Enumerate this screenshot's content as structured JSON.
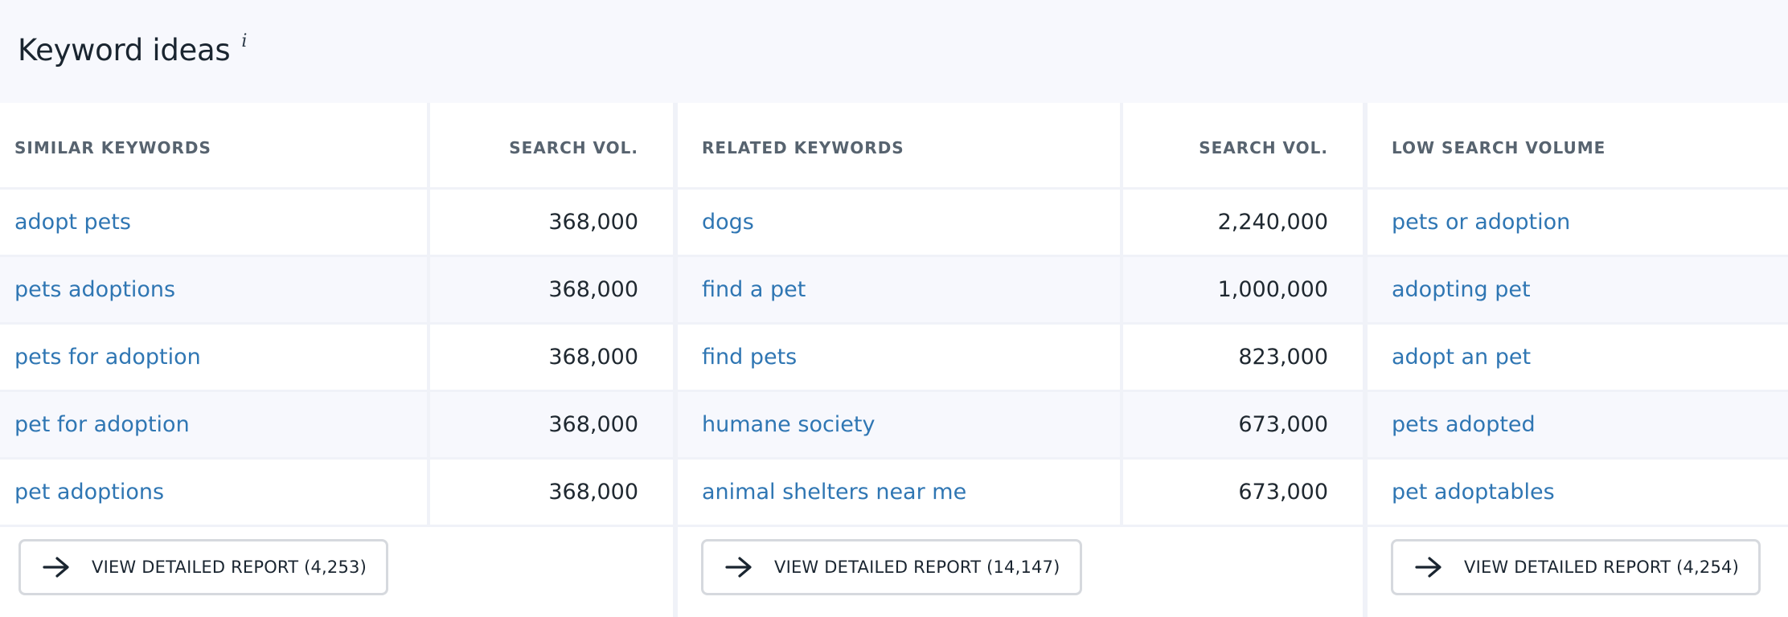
{
  "header": {
    "title": "Keyword ideas",
    "info": "i"
  },
  "sections": {
    "similar": {
      "keyword_header": "SIMILAR KEYWORDS",
      "volume_header": "SEARCH VOL.",
      "rows": [
        {
          "keyword": "adopt pets",
          "volume": "368,000"
        },
        {
          "keyword": "pets adoptions",
          "volume": "368,000"
        },
        {
          "keyword": "pets for adoption",
          "volume": "368,000"
        },
        {
          "keyword": "pet for adoption",
          "volume": "368,000"
        },
        {
          "keyword": "pet adoptions",
          "volume": "368,000"
        }
      ],
      "button_label": "VIEW DETAILED REPORT (4,253)"
    },
    "related": {
      "keyword_header": "RELATED KEYWORDS",
      "volume_header": "SEARCH VOL.",
      "rows": [
        {
          "keyword": "dogs",
          "volume": "2,240,000"
        },
        {
          "keyword": "find a pet",
          "volume": "1,000,000"
        },
        {
          "keyword": "find pets",
          "volume": "823,000"
        },
        {
          "keyword": "humane society",
          "volume": "673,000"
        },
        {
          "keyword": "animal shelters near me",
          "volume": "673,000"
        }
      ],
      "button_label": "VIEW DETAILED REPORT (14,147)"
    },
    "low": {
      "keyword_header": "LOW SEARCH VOLUME",
      "rows": [
        {
          "keyword": "pets or adoption"
        },
        {
          "keyword": "adopting pet"
        },
        {
          "keyword": "adopt an pet"
        },
        {
          "keyword": "pets adopted"
        },
        {
          "keyword": "pet adoptables"
        }
      ],
      "button_label": "VIEW DETAILED REPORT (4,254)"
    }
  },
  "icons": {
    "button_icon": "arrow-right-icon"
  },
  "colors": {
    "link": "#2f76b3",
    "header_bg": "#f7f8fd",
    "divider": "#f0f2f8"
  }
}
